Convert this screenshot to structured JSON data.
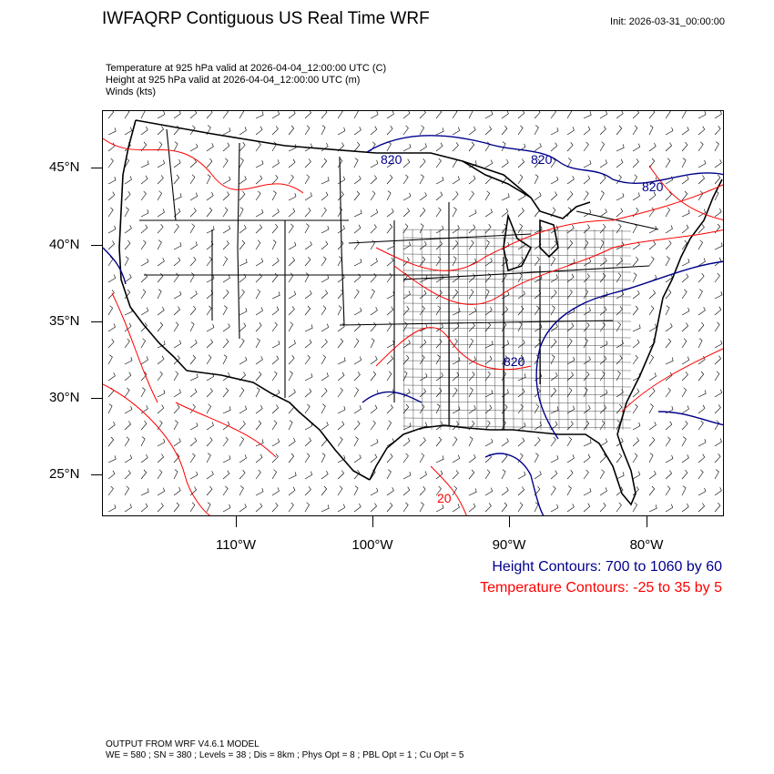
{
  "header": {
    "title": "IWFAQRP Contiguous US Real Time WRF",
    "init": "Init: 2026-03-31_00:00:00"
  },
  "fields": [
    "Temperature at 925 hPa valid at 2026-04-04_12:00:00 UTC   (C)",
    "Height at 925 hPa valid at 2026-04-04_12:00:00 UTC   (m)",
    "Winds   (kts)"
  ],
  "map": {
    "region": "Contiguous US",
    "lat_labels": [
      "45°N",
      "40°N",
      "35°N",
      "30°N",
      "25°N"
    ],
    "lon_labels": [
      "110°W",
      "100°W",
      "90°W",
      "80°W"
    ],
    "contour_labels": {
      "height": [
        "820",
        "820",
        "820",
        "820"
      ],
      "temperature": [
        "20"
      ]
    },
    "colors": {
      "height": "#00008b",
      "temperature": "#ff0000",
      "boundaries": "#000000",
      "winds": "#000000"
    }
  },
  "legend": {
    "height": "Height Contours: 700 to 1060 by 60",
    "temperature": "Temperature Contours: -25 to 35 by 5"
  },
  "footer": {
    "model": "OUTPUT FROM WRF V4.6.1 MODEL",
    "config": "WE = 580 ; SN = 380 ; Levels = 38 ; Dis = 8km ; Phys Opt = 8 ; PBL Opt = 1 ; Cu Opt = 5"
  }
}
